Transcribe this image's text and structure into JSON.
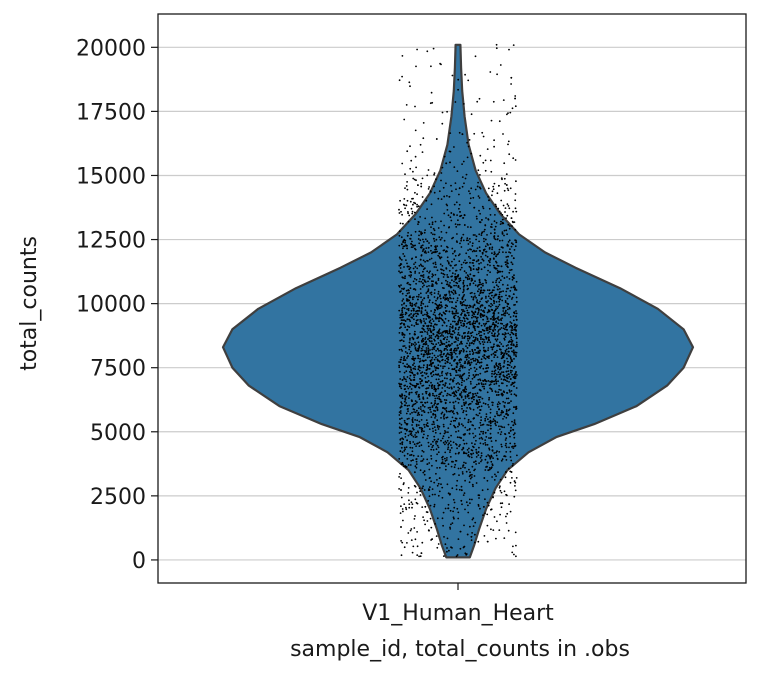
{
  "chart_data": {
    "type": "violin",
    "categories": [
      "V1_Human_Heart"
    ],
    "xlabel": "sample_id, total_counts in .obs",
    "ylabel": "total_counts",
    "ylim": [
      -900,
      21300
    ],
    "yticks": [
      0,
      2500,
      5000,
      7500,
      10000,
      12500,
      15000,
      17500,
      20000
    ],
    "grid": "horizontal",
    "violin_color": "#3274a1",
    "outline_color": "#3f3f3f",
    "point_color": "#000000",
    "density_profile": [
      {
        "y": 100,
        "width": 0.05
      },
      {
        "y": 600,
        "width": 0.07
      },
      {
        "y": 1200,
        "width": 0.09
      },
      {
        "y": 2000,
        "width": 0.12
      },
      {
        "y": 2800,
        "width": 0.16
      },
      {
        "y": 3500,
        "width": 0.21
      },
      {
        "y": 4200,
        "width": 0.3
      },
      {
        "y": 4800,
        "width": 0.42
      },
      {
        "y": 5300,
        "width": 0.58
      },
      {
        "y": 6000,
        "width": 0.76
      },
      {
        "y": 6800,
        "width": 0.89
      },
      {
        "y": 7500,
        "width": 0.96
      },
      {
        "y": 8300,
        "width": 1.0
      },
      {
        "y": 9000,
        "width": 0.96
      },
      {
        "y": 9800,
        "width": 0.85
      },
      {
        "y": 10600,
        "width": 0.69
      },
      {
        "y": 11400,
        "width": 0.5
      },
      {
        "y": 12000,
        "width": 0.37
      },
      {
        "y": 12700,
        "width": 0.26
      },
      {
        "y": 13500,
        "width": 0.18
      },
      {
        "y": 14300,
        "width": 0.12
      },
      {
        "y": 15200,
        "width": 0.075
      },
      {
        "y": 16200,
        "width": 0.045
      },
      {
        "y": 17300,
        "width": 0.028
      },
      {
        "y": 18300,
        "width": 0.018
      },
      {
        "y": 19200,
        "width": 0.013
      },
      {
        "y": 20100,
        "width": 0.01
      }
    ],
    "points": {
      "count": 4000,
      "center": 8500,
      "spread": 2700,
      "min": 100,
      "max": 20100
    }
  }
}
